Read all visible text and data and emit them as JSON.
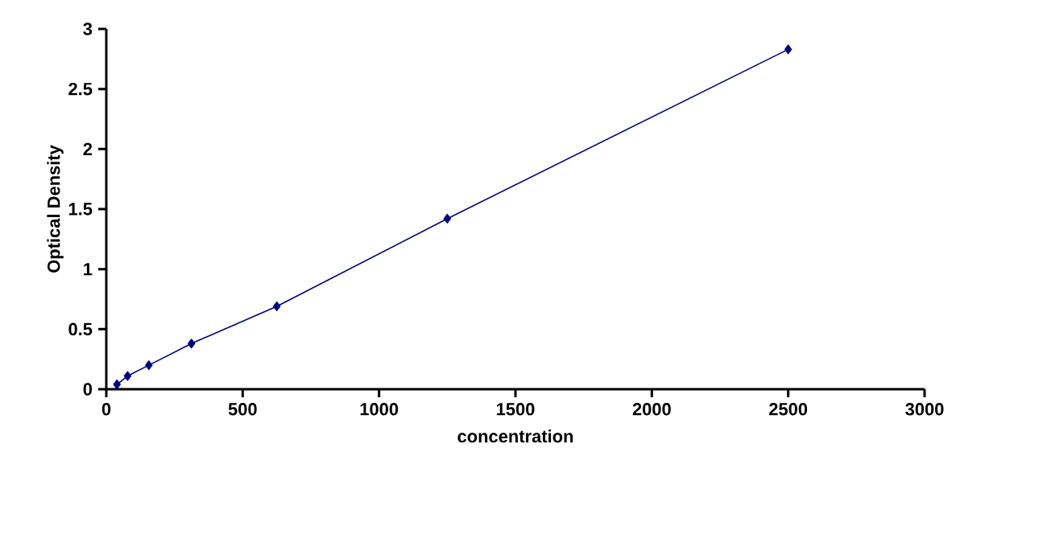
{
  "chart_data": {
    "type": "line",
    "xlabel": "concentration",
    "ylabel": "Optical Density",
    "x": [
      39,
      78,
      156,
      312,
      625,
      1250,
      2500
    ],
    "series": [
      {
        "color": "#000080",
        "values": [
          0.04,
          0.11,
          0.2,
          0.38,
          0.69,
          1.42,
          2.83
        ]
      }
    ],
    "xlim": [
      0,
      3000
    ],
    "xticks": [
      0,
      500,
      1000,
      1500,
      2000,
      2500,
      3000
    ],
    "ylim": [
      0,
      3
    ],
    "yticks": [
      0,
      0.5,
      1,
      1.5,
      2,
      2.5,
      3
    ],
    "marker": "diamond",
    "line_style": "solid",
    "grid": false
  }
}
